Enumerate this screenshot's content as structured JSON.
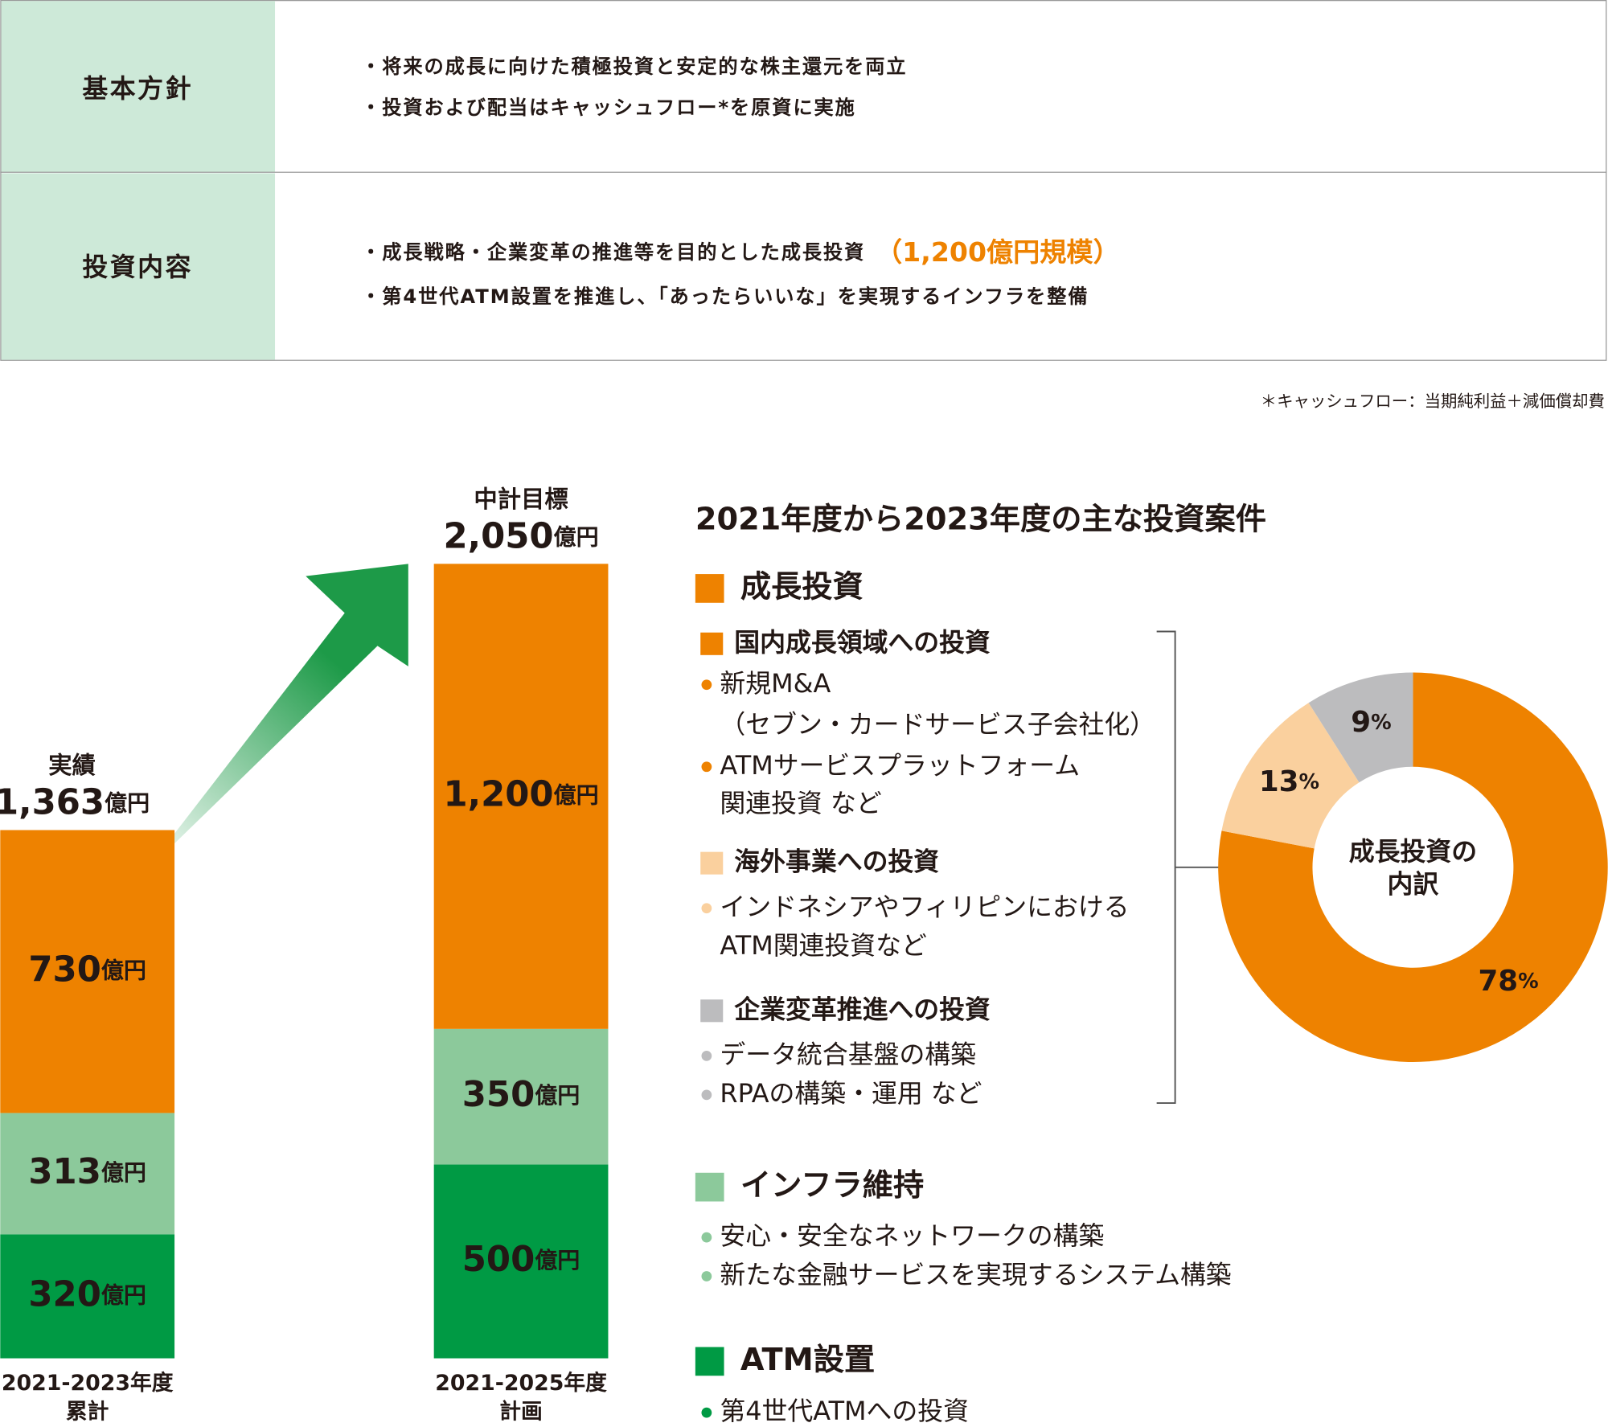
{
  "policy_table": {
    "rows": [
      {
        "heading": "基本方針",
        "lines": [
          "・将来の成長に向けた積極投資と安定的な株主還元を両立",
          "・投資および配当はキャッシュフロー*を原資に実施"
        ]
      },
      {
        "heading": "投資内容",
        "lines": [
          "・成長戦略・企業変革の推進等を目的とした成長投資",
          "・第4世代ATM設置を推進し、「あったらいいな」を実現するインフラを整備"
        ],
        "highlight": "（1,200億円規模）"
      }
    ]
  },
  "footnote": "＊キャッシュフロー：当期純利益＋減価償却費",
  "chart_data": [
    {
      "type": "bar",
      "stacked": true,
      "categories": [
        [
          "2021-2023年度",
          "累計"
        ],
        [
          "2021-2025年度",
          "計画"
        ]
      ],
      "series": [
        {
          "name": "ATM設置",
          "color": "#009a44",
          "values": [
            320,
            500
          ],
          "value_labels": [
            "320億円",
            "500億円"
          ]
        },
        {
          "name": "インフラ維持",
          "color": "#8cc99b",
          "values": [
            313,
            350
          ],
          "value_labels": [
            "313億円",
            "350億円"
          ]
        },
        {
          "name": "成長投資",
          "color": "#ee8200",
          "values": [
            730,
            1200
          ],
          "value_labels": [
            "730億円",
            "1,200億円"
          ]
        }
      ],
      "totals": [
        {
          "label": "実績",
          "value": 1363,
          "value_label": "1,363億円"
        },
        {
          "label": "中計目標",
          "value": 2050,
          "value_label": "2,050億円"
        }
      ],
      "ylim": [
        0,
        2050
      ]
    },
    {
      "type": "pie",
      "donut": true,
      "center_label": [
        "成長投資の",
        "内訳"
      ],
      "categories": [
        "国内成長領域への投資",
        "海外事業への投資",
        "企業変革推進への投資"
      ],
      "values": [
        78,
        13,
        9
      ],
      "value_labels": [
        "78%",
        "13%",
        "9%"
      ],
      "colors": [
        "#ee8200",
        "#fad09e",
        "#bcbcbe"
      ]
    }
  ],
  "investment_list": {
    "title": "2021年度から2023年度の主な投資案件",
    "growth_items": [
      [
        [
          "新規M&A",
          "（セブン・カードサービス子会社化）"
        ],
        [
          "ATMサービスプラットフォーム",
          "関連投資 など"
        ]
      ],
      [
        [
          "インドネシアやフィリピンにおける",
          "ATM関連投資など"
        ]
      ],
      [
        [
          "データ統合基盤の構築"
        ],
        [
          "RPAの構築・運用 など"
        ]
      ]
    ],
    "infra_items": [
      [
        "安心・安全なネットワークの構築"
      ],
      [
        "新たな金融サービスを実現するシステム構築"
      ]
    ],
    "atm_items": [
      [
        "第4世代ATMへの投資"
      ]
    ]
  }
}
